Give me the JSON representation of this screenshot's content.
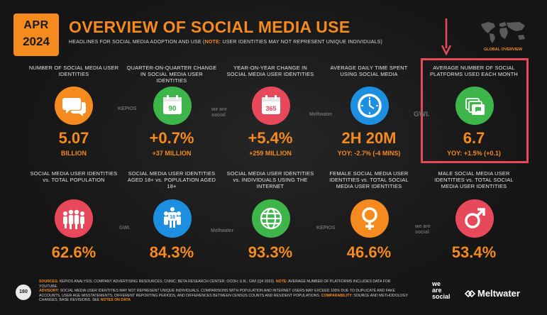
{
  "header": {
    "month": "APR",
    "year": "2024",
    "title": "OVERVIEW OF SOCIAL MEDIA USE",
    "subtitle_pre": "HEADLINES FOR SOCIAL MEDIA ADOPTION AND USE (",
    "subtitle_note": "NOTE:",
    "subtitle_post": " USER IDENTITIES MAY NOT REPRESENT UNIQUE INDIVIDUALS)",
    "global_tag": "GLOBAL OVERVIEW"
  },
  "row1": [
    {
      "label": "NUMBER OF SOCIAL MEDIA USER IDENTITIES",
      "icon": "speech-bubbles-icon",
      "color": "#f58a1f",
      "value": "5.07",
      "sub": "BILLION"
    },
    {
      "label": "QUARTER-ON-QUARTER CHANGE IN SOCIAL MEDIA USER IDENTITIES",
      "icon": "calendar-90-icon",
      "icon_text": "90",
      "color": "#3db54a",
      "value": "+0.7%",
      "sub": "+37 MILLION"
    },
    {
      "label": "YEAR-ON-YEAR CHANGE IN SOCIAL MEDIA USER IDENTITIES",
      "icon": "calendar-365-icon",
      "icon_text": "365",
      "color": "#e8495a",
      "value": "+5.4%",
      "sub": "+259 MILLION"
    },
    {
      "label": "AVERAGE DAILY TIME SPENT USING SOCIAL MEDIA",
      "icon": "clock-icon",
      "color": "#1d8fe1",
      "value": "2H 20M",
      "sub": "YOY: -2.7% (-4 MINS)"
    },
    {
      "label": "AVERAGE NUMBER OF SOCIAL PLATFORMS USED EACH MONTH",
      "icon": "platform-windows-icon",
      "color": "#3db54a",
      "value": "6.7",
      "sub": "YOY: +1.5% (+0.1)"
    }
  ],
  "row2": [
    {
      "label": "SOCIAL MEDIA USER IDENTITIES vs. TOTAL POPULATION",
      "icon": "population-icon",
      "color": "#e8495a",
      "value": "62.6%"
    },
    {
      "label": "SOCIAL MEDIA USER IDENTITIES AGED 18+ vs. POPULATION AGED 18+",
      "icon": "adults-18-icon",
      "icon_text": "18",
      "color": "#1d8fe1",
      "value": "84.3%"
    },
    {
      "label": "SOCIAL MEDIA USER IDENTITIES vs. INDIVIDUALS USING THE INTERNET",
      "icon": "globe-icon",
      "color": "#3db54a",
      "value": "93.3%"
    },
    {
      "label": "FEMALE SOCIAL MEDIA USER IDENTITIES vs. TOTAL SOCIAL MEDIA USER IDENTITIES",
      "icon": "female-symbol-icon",
      "color": "#f58a1f",
      "value": "46.6%"
    },
    {
      "label": "MALE SOCIAL MEDIA USER IDENTITIES vs. TOTAL SOCIAL MEDIA USER IDENTITIES",
      "icon": "male-symbol-icon",
      "color": "#e8495a",
      "value": "53.4%"
    }
  ],
  "watermarks": {
    "kepios": "KEPIOS",
    "was": "we are social",
    "meltwater": "Meltwater",
    "gwi": "GWI."
  },
  "footer": {
    "sources_h": "SOURCES:",
    "sources": " KEPIOS ANALYSIS; COMPANY ADVERTISING RESOURCES; CNNIC; BETA RESEARCH CENTER; OCDH; U.N.; GWI (Q4 2023).",
    "note_h": " NOTE:",
    "note": " AVERAGE NUMBER OF PLATFORMS INCLUDES DATA FOR YOUTUBE.",
    "advisory_h": "ADVISORY:",
    "advisory": " SOCIAL MEDIA USER IDENTITIES MAY NOT REPRESENT UNIQUE INDIVIDUALS. COMPARISONS WITH POPULATION AND INTERNET USERS MAY EXCEED 100% DUE TO DUPLICATE AND FAKE ACCOUNTS, USER AGE MISSTATEMENTS, DIFFERENT REPORTING PERIODS, AND DIFFERENCES BETWEEN CENSUS COUNTS AND RESIDENT POPULATIONS.",
    "comp_h": " COMPARABILITY:",
    "comp": " SOURCE AND METHODOLOGY CHANGES, BASE REVISIONS. SEE",
    "notes_link": " NOTES ON DATA",
    "page": "180"
  },
  "brand": {
    "was_line1": "we",
    "was_line2": "are",
    "was_line3": "social",
    "meltwater": "Meltwater"
  }
}
